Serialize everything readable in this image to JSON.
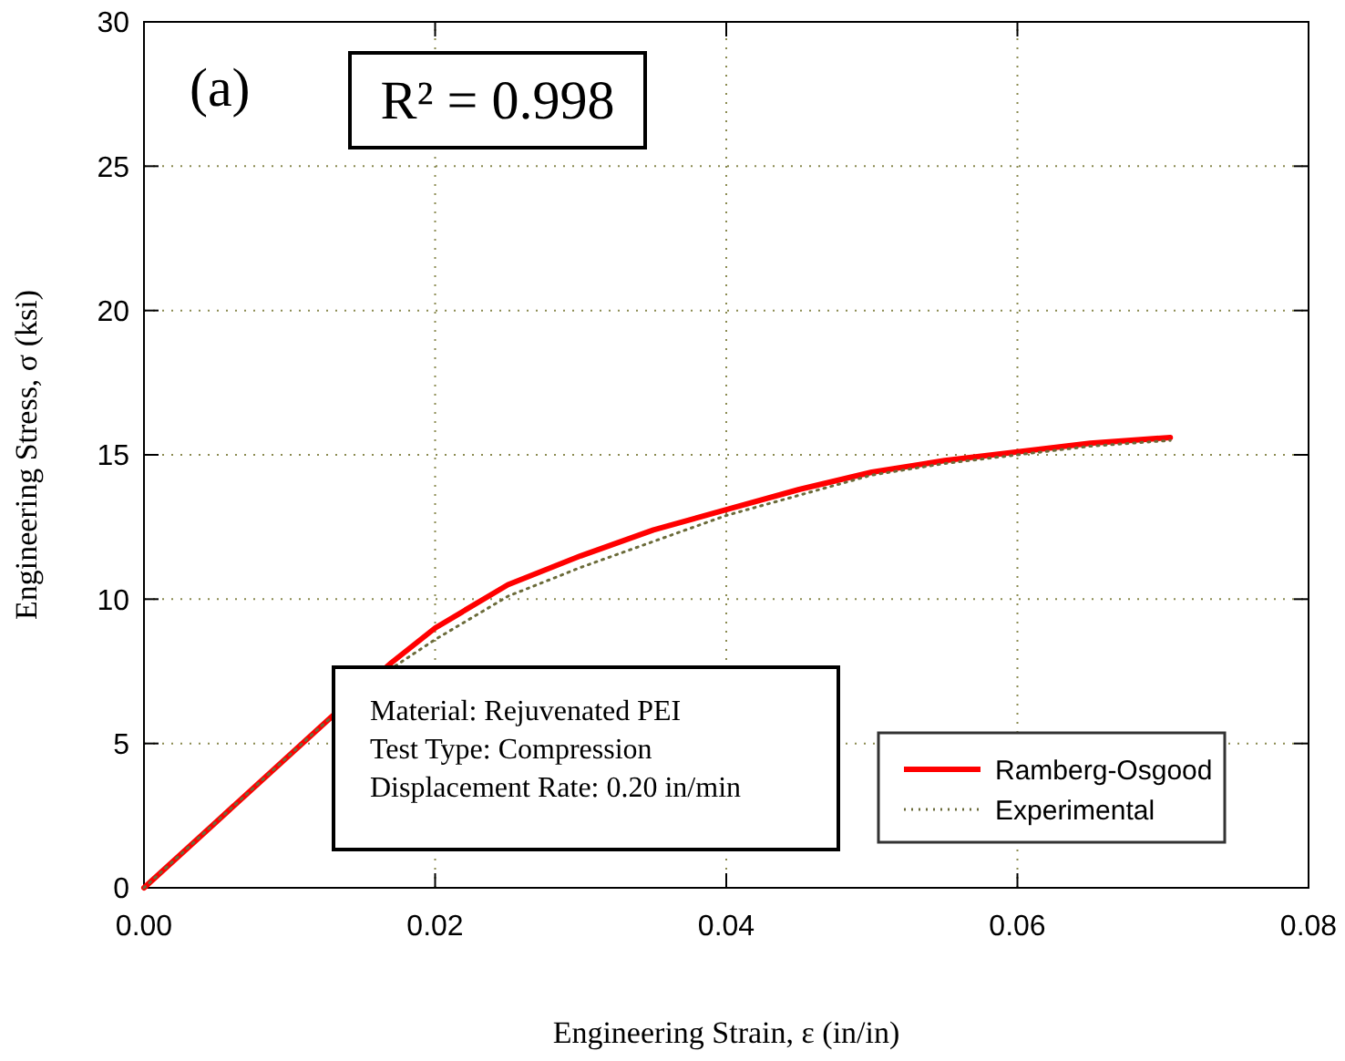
{
  "chart_data": {
    "type": "line",
    "xlabel": "Engineering Strain, ε (in/in)",
    "ylabel": "Engineering Stress, σ (ksi)",
    "xlim": [
      0,
      0.08
    ],
    "xticks": [
      {
        "value": 0,
        "label": "0.00"
      },
      {
        "value": 0.02,
        "label": "0.02"
      },
      {
        "value": 0.04,
        "label": "0.04"
      },
      {
        "value": 0.06,
        "label": "0.06"
      },
      {
        "value": 0.08,
        "label": "0.08"
      }
    ],
    "ylim": [
      0,
      30
    ],
    "yticks": [
      0,
      5,
      10,
      15,
      20,
      25,
      30
    ],
    "grid": true,
    "legend": "bottom right",
    "series": [
      {
        "name": "Ramberg-Osgood",
        "color": "#ff0000",
        "line_style": "solid",
        "x": [
          0,
          0.005,
          0.0125,
          0.017,
          0.02,
          0.025,
          0.03,
          0.035,
          0.04,
          0.045,
          0.05,
          0.055,
          0.06,
          0.065,
          0.0705
        ],
        "values": [
          0,
          2.3,
          5.75,
          7.8,
          9.0,
          10.5,
          11.5,
          12.4,
          13.1,
          13.8,
          14.4,
          14.8,
          15.1,
          15.4,
          15.6
        ]
      },
      {
        "name": "Experimental",
        "color": "#6b6b3a",
        "line_style": "dotted",
        "x": [
          0,
          0.005,
          0.0125,
          0.017,
          0.02,
          0.025,
          0.03,
          0.035,
          0.04,
          0.045,
          0.05,
          0.055,
          0.06,
          0.065,
          0.0705
        ],
        "values": [
          0,
          2.3,
          5.75,
          7.6,
          8.6,
          10.1,
          11.1,
          12.0,
          12.9,
          13.6,
          14.3,
          14.7,
          15.0,
          15.3,
          15.5
        ]
      }
    ],
    "annotations": [
      "(a)",
      "R² = 0.998",
      "Material: Rejuvenated PEI\nTest Type: Compression\nDisplacement Rate: 0.20 in/min"
    ]
  }
}
